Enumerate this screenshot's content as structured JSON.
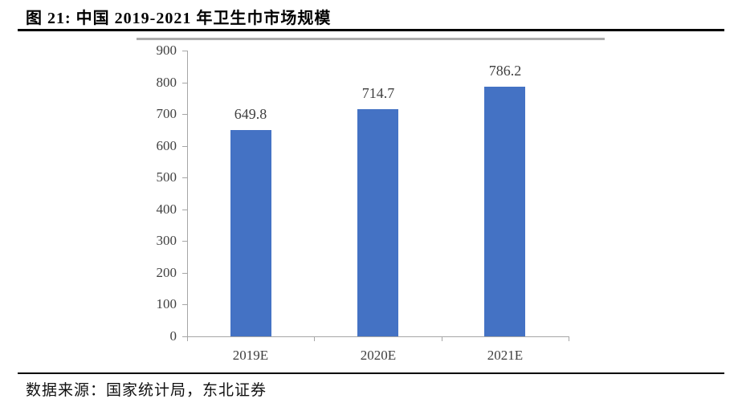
{
  "page": {
    "title": "图 21: 中国 2019-2021 年卫生巾市场规模",
    "source_note": "数据来源：国家统计局，东北证券"
  },
  "chart_data": {
    "type": "bar",
    "title": "图 21: 中国 2019-2021 年卫生巾市场规模",
    "categories": [
      "2019E",
      "2020E",
      "2021E"
    ],
    "values": [
      649.8,
      714.7,
      786.2
    ],
    "data_labels": [
      "649.8",
      "714.7",
      "786.2"
    ],
    "xlabel": "",
    "ylabel": "",
    "ylim": [
      0,
      900
    ],
    "ytick_interval": 100,
    "yticks": [
      0,
      100,
      200,
      300,
      400,
      500,
      600,
      700,
      800,
      900
    ],
    "grid": false,
    "legend": false,
    "bar_color": "#4472c4",
    "axis_color": "#a6a6a6",
    "tick_label_color": "#404040",
    "data_label_color": "#3f3f3f",
    "source": "数据来源：国家统计局，东北证券"
  }
}
